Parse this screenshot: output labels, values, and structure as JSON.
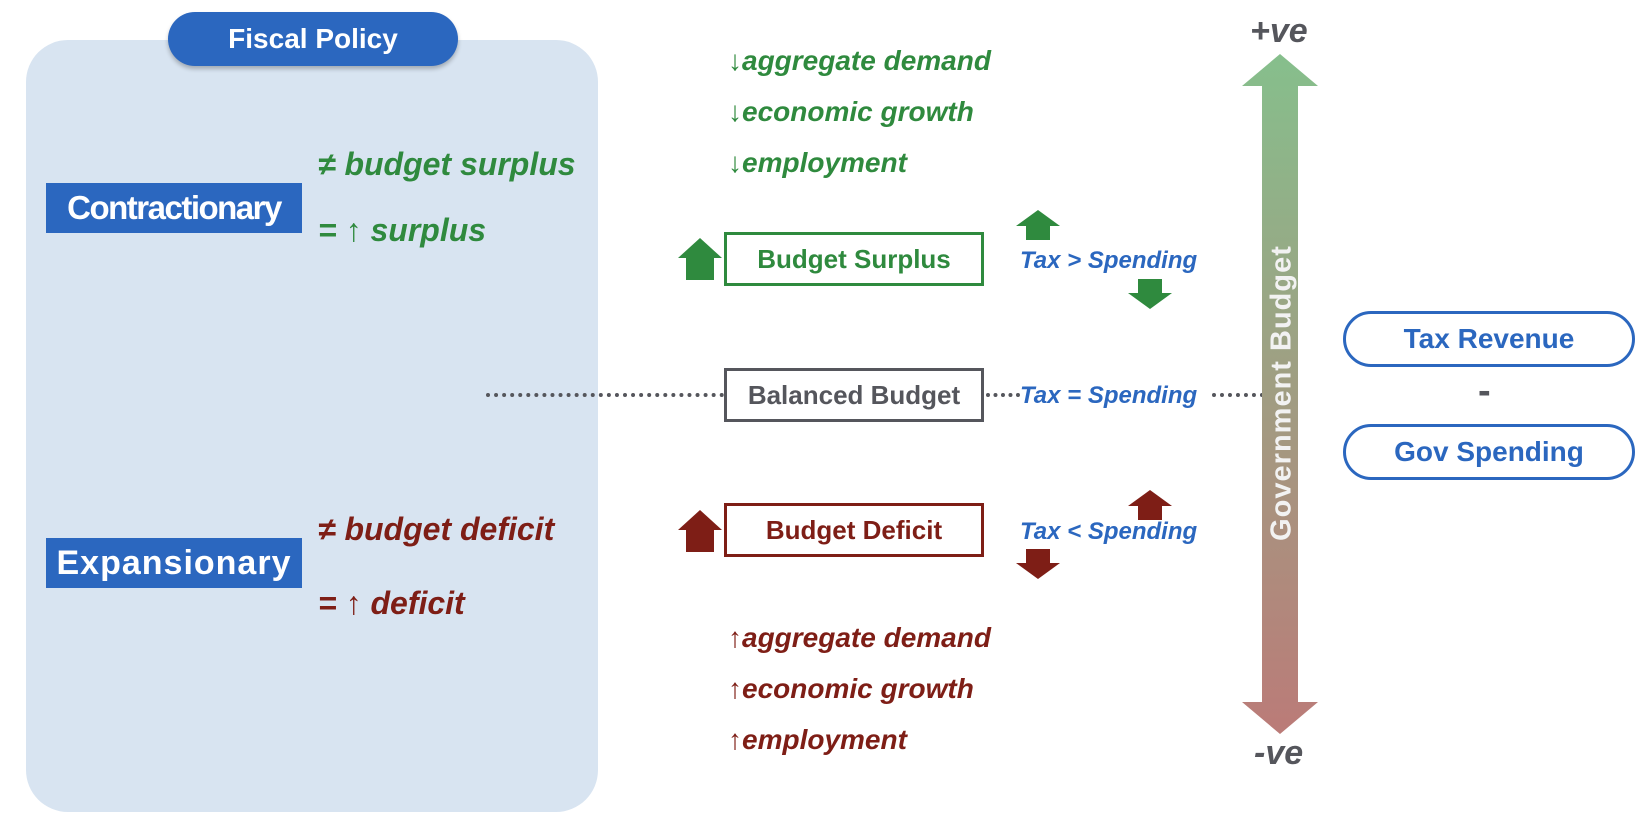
{
  "header": {
    "title": "Fiscal Policy"
  },
  "colors": {
    "blue": "#2b67bf",
    "green": "#2f8a3e",
    "red": "#7e1e16",
    "gray": "#55565c",
    "panel": "#d8e4f1"
  },
  "contractionary": {
    "label": "Contractionary",
    "line1": "≠ budget surplus",
    "line2_prefix": "= ",
    "line2_text": "surplus",
    "effects": [
      {
        "arrow": "↓",
        "text": "aggregate demand"
      },
      {
        "arrow": "↓",
        "text": "economic growth"
      },
      {
        "arrow": "↓",
        "text": "employment"
      }
    ]
  },
  "expansionary": {
    "label": "Expansionary",
    "line1": "≠ budget deficit",
    "line2_prefix": "= ",
    "line2_text": "deficit",
    "effects": [
      {
        "arrow": "↑",
        "text": "aggregate demand"
      },
      {
        "arrow": "↑",
        "text": "economic growth"
      },
      {
        "arrow": "↑",
        "text": "employment"
      }
    ]
  },
  "budget": {
    "surplus": "Budget Surplus",
    "balanced": "Balanced Budget",
    "deficit": "Budget Deficit",
    "tax_gt": "Tax > Spending",
    "tax_eq": "Tax = Spending",
    "tax_lt": "Tax < Spending"
  },
  "axis": {
    "label": "Government Budget",
    "top": "+ve",
    "bottom": "-ve",
    "gradient_top": "#86bf8c",
    "gradient_bottom": "#bb7b78"
  },
  "formula": {
    "tax_revenue": "Tax Revenue",
    "minus": "-",
    "gov_spending": "Gov Spending"
  },
  "icons": [
    "up-arrow-icon",
    "down-arrow-icon"
  ]
}
